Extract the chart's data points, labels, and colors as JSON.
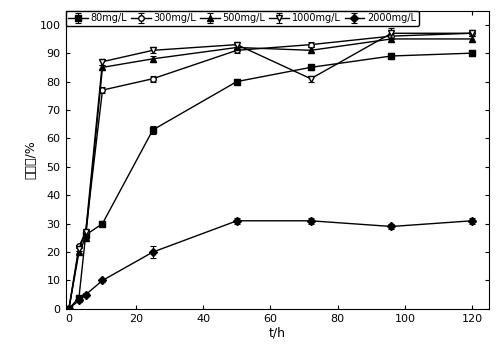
{
  "series": [
    {
      "label": "80mg/L",
      "marker": "s",
      "fillstyle": "full",
      "x": [
        0,
        3,
        5,
        10,
        25,
        50,
        72,
        96,
        120
      ],
      "y": [
        0,
        4,
        26,
        30,
        63,
        80,
        85,
        89,
        90
      ],
      "yerr": [
        0,
        0.5,
        1,
        1,
        1.5,
        1,
        1,
        1,
        1
      ]
    },
    {
      "label": "300mg/L",
      "marker": "o",
      "fillstyle": "none",
      "x": [
        0,
        3,
        5,
        10,
        25,
        50,
        72,
        96,
        120
      ],
      "y": [
        0,
        22,
        27,
        77,
        81,
        91,
        93,
        96,
        97
      ],
      "yerr": [
        0,
        0.5,
        0.5,
        1,
        1,
        1,
        1,
        1,
        1
      ]
    },
    {
      "label": "500mg/L",
      "marker": "^",
      "fillstyle": "full",
      "x": [
        0,
        3,
        5,
        10,
        25,
        50,
        72,
        96,
        120
      ],
      "y": [
        0,
        20,
        25,
        85,
        88,
        92,
        91,
        95,
        95
      ],
      "yerr": [
        0,
        0.5,
        0.5,
        1,
        1,
        1,
        1,
        1,
        1
      ]
    },
    {
      "label": "1000mg/L",
      "marker": "v",
      "fillstyle": "none",
      "x": [
        0,
        3,
        5,
        10,
        25,
        50,
        72,
        96,
        120
      ],
      "y": [
        0,
        21,
        27,
        87,
        91,
        93,
        81,
        97,
        97
      ],
      "yerr": [
        0,
        0.5,
        0.5,
        1,
        1,
        1,
        1,
        2,
        1
      ]
    },
    {
      "label": "2000mg/L",
      "marker": "D",
      "fillstyle": "full",
      "x": [
        0,
        3,
        5,
        10,
        25,
        50,
        72,
        96,
        120
      ],
      "y": [
        0,
        3,
        5,
        10,
        20,
        31,
        31,
        29,
        31
      ],
      "yerr": [
        0,
        0.5,
        0.5,
        0.5,
        2,
        1,
        1,
        1,
        1
      ]
    }
  ],
  "xlabel": "t/h",
  "ylabel": "脱色率/%",
  "xlim": [
    -1,
    125
  ],
  "ylim": [
    0,
    105
  ],
  "xticks": [
    0,
    20,
    40,
    60,
    80,
    100,
    120
  ],
  "yticks": [
    0,
    10,
    20,
    30,
    40,
    50,
    60,
    70,
    80,
    90,
    100
  ],
  "color": "#000000",
  "linewidth": 1.0,
  "markersize": 4,
  "figsize": [
    5.04,
    3.51
  ],
  "dpi": 100
}
